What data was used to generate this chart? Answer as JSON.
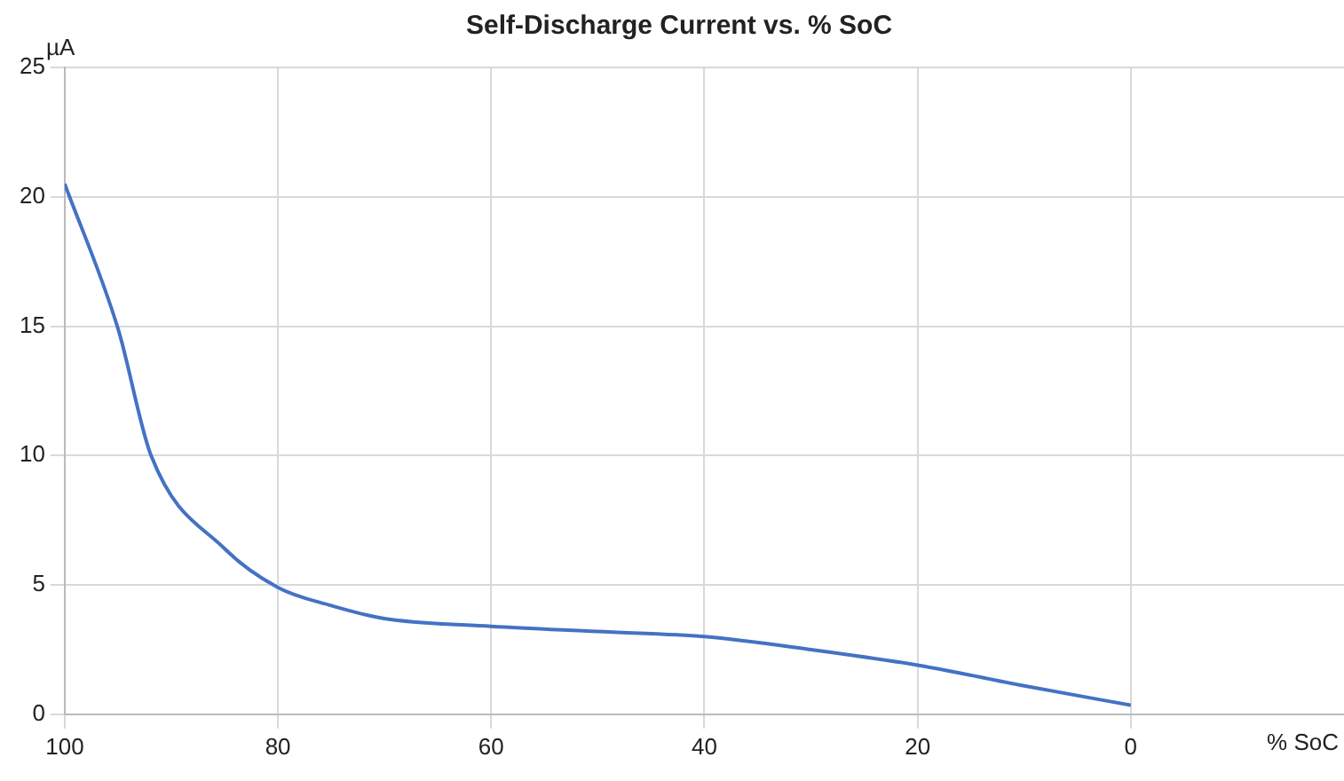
{
  "chart_data": {
    "type": "line",
    "title": "Self-Discharge Current vs. % SoC",
    "xlabel": "% SoC",
    "ylabel": "µA",
    "x": [
      100,
      95,
      91.9,
      85,
      80,
      75,
      70,
      60,
      50,
      40,
      30,
      20,
      10,
      0
    ],
    "series": [
      {
        "color": "#4472c4",
        "values": [
          20.5,
          14.9,
          10,
          6.4,
          4.9,
          4.2,
          3.7,
          3.4,
          3.2,
          3.0,
          2.5,
          1.9,
          1.1,
          0.35
        ]
      }
    ],
    "xlim": [
      100,
      -20
    ],
    "xticks": [
      100,
      80,
      60,
      40,
      20,
      0
    ],
    "ylim": [
      0,
      25
    ],
    "yticks": [
      0,
      5,
      10,
      15,
      20,
      25
    ],
    "grid": true,
    "legend": false,
    "marker": "none",
    "line_style": "solid"
  }
}
